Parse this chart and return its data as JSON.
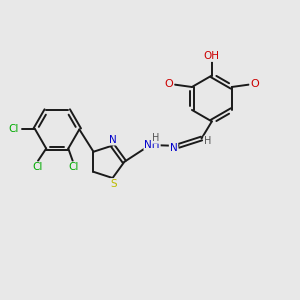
{
  "bg_color": "#e8e8e8",
  "bond_color": "#1a1a1a",
  "atom_colors": {
    "O": "#cc0000",
    "N": "#0000cc",
    "S": "#bbbb00",
    "Cl": "#00aa00",
    "C": "#1a1a1a",
    "H": "#555555"
  },
  "figsize": [
    3.0,
    3.0
  ],
  "dpi": 100,
  "lw": 1.4,
  "fs": 7.0
}
